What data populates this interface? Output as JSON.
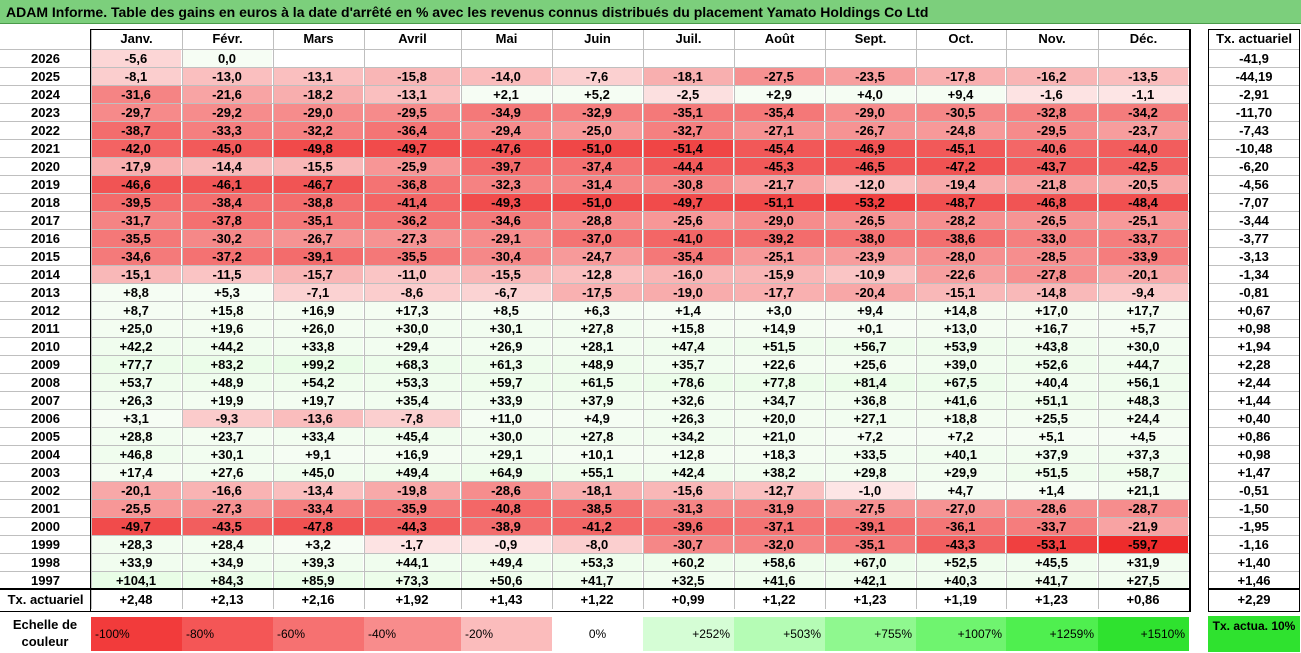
{
  "title": "ADAM Informe. Table des gains en euros à la date d'arrêté en % avec les revenus connus distribués du placement Yamato Holdings Co Ltd",
  "chart_data": {
    "type": "heatmap",
    "months": [
      "Janv.",
      "Févr.",
      "Mars",
      "Avril",
      "Mai",
      "Juin",
      "Juil.",
      "Août",
      "Sept.",
      "Oct.",
      "Nov.",
      "Déc."
    ],
    "rate_header": "Tx. actuariel",
    "rows": [
      {
        "year": "2026",
        "values": [
          "-5,6",
          "0,0",
          "",
          "",
          "",
          "",
          "",
          "",
          "",
          "",
          "",
          ""
        ],
        "rate": "-41,9"
      },
      {
        "year": "2025",
        "values": [
          "-8,1",
          "-13,0",
          "-13,1",
          "-15,8",
          "-14,0",
          "-7,6",
          "-18,1",
          "-27,5",
          "-23,5",
          "-17,8",
          "-16,2",
          "-13,5"
        ],
        "rate": "-44,19"
      },
      {
        "year": "2024",
        "values": [
          "-31,6",
          "-21,6",
          "-18,2",
          "-13,1",
          "+2,1",
          "+5,2",
          "-2,5",
          "+2,9",
          "+4,0",
          "+9,4",
          "-1,6",
          "-1,1"
        ],
        "rate": "-2,91"
      },
      {
        "year": "2023",
        "values": [
          "-29,7",
          "-29,2",
          "-29,0",
          "-29,5",
          "-34,9",
          "-32,9",
          "-35,1",
          "-35,4",
          "-29,0",
          "-30,5",
          "-32,8",
          "-34,2"
        ],
        "rate": "-11,70"
      },
      {
        "year": "2022",
        "values": [
          "-38,7",
          "-33,3",
          "-32,2",
          "-36,4",
          "-29,4",
          "-25,0",
          "-32,7",
          "-27,1",
          "-26,7",
          "-24,8",
          "-29,5",
          "-23,7"
        ],
        "rate": "-7,43"
      },
      {
        "year": "2021",
        "values": [
          "-42,0",
          "-45,0",
          "-49,8",
          "-49,7",
          "-47,6",
          "-51,0",
          "-51,4",
          "-45,4",
          "-46,9",
          "-45,1",
          "-40,6",
          "-44,0"
        ],
        "rate": "-10,48"
      },
      {
        "year": "2020",
        "values": [
          "-17,9",
          "-14,4",
          "-15,5",
          "-25,9",
          "-39,7",
          "-37,4",
          "-44,4",
          "-45,3",
          "-46,5",
          "-47,2",
          "-43,7",
          "-42,5"
        ],
        "rate": "-6,20"
      },
      {
        "year": "2019",
        "values": [
          "-46,6",
          "-46,1",
          "-46,7",
          "-36,8",
          "-32,3",
          "-31,4",
          "-30,8",
          "-21,7",
          "-12,0",
          "-19,4",
          "-21,8",
          "-20,5"
        ],
        "rate": "-4,56"
      },
      {
        "year": "2018",
        "values": [
          "-39,5",
          "-38,4",
          "-38,8",
          "-41,4",
          "-49,3",
          "-51,0",
          "-49,7",
          "-51,1",
          "-53,2",
          "-48,7",
          "-46,8",
          "-48,4"
        ],
        "rate": "-7,07"
      },
      {
        "year": "2017",
        "values": [
          "-31,7",
          "-37,8",
          "-35,1",
          "-36,2",
          "-34,6",
          "-28,8",
          "-25,6",
          "-29,0",
          "-26,5",
          "-28,2",
          "-26,5",
          "-25,1"
        ],
        "rate": "-3,44"
      },
      {
        "year": "2016",
        "values": [
          "-35,5",
          "-30,2",
          "-26,7",
          "-27,3",
          "-29,1",
          "-37,0",
          "-41,0",
          "-39,2",
          "-38,0",
          "-38,6",
          "-33,0",
          "-33,7"
        ],
        "rate": "-3,77"
      },
      {
        "year": "2015",
        "values": [
          "-34,6",
          "-37,2",
          "-39,1",
          "-35,5",
          "-30,4",
          "-24,7",
          "-35,4",
          "-25,1",
          "-23,9",
          "-28,0",
          "-28,5",
          "-33,9"
        ],
        "rate": "-3,13"
      },
      {
        "year": "2014",
        "values": [
          "-15,1",
          "-11,5",
          "-15,7",
          "-11,0",
          "-15,5",
          "-12,8",
          "-16,0",
          "-15,9",
          "-10,9",
          "-22,6",
          "-27,8",
          "-20,1"
        ],
        "rate": "-1,34"
      },
      {
        "year": "2013",
        "values": [
          "+8,8",
          "+5,3",
          "-7,1",
          "-8,6",
          "-6,7",
          "-17,5",
          "-19,0",
          "-17,7",
          "-20,4",
          "-15,1",
          "-14,8",
          "-9,4"
        ],
        "rate": "-0,81"
      },
      {
        "year": "2012",
        "values": [
          "+8,7",
          "+15,8",
          "+16,9",
          "+17,3",
          "+8,5",
          "+6,3",
          "+1,4",
          "+3,0",
          "+9,4",
          "+14,8",
          "+17,0",
          "+17,7"
        ],
        "rate": "+0,67"
      },
      {
        "year": "2011",
        "values": [
          "+25,0",
          "+19,6",
          "+26,0",
          "+30,0",
          "+30,1",
          "+27,8",
          "+15,8",
          "+14,9",
          "+0,1",
          "+13,0",
          "+16,7",
          "+5,7"
        ],
        "rate": "+0,98"
      },
      {
        "year": "2010",
        "values": [
          "+42,2",
          "+44,2",
          "+33,8",
          "+29,4",
          "+26,9",
          "+28,1",
          "+47,4",
          "+51,5",
          "+56,7",
          "+53,9",
          "+43,8",
          "+30,0"
        ],
        "rate": "+1,94"
      },
      {
        "year": "2009",
        "values": [
          "+77,7",
          "+83,2",
          "+99,2",
          "+68,3",
          "+61,3",
          "+48,9",
          "+35,7",
          "+22,6",
          "+25,6",
          "+39,0",
          "+52,6",
          "+44,7"
        ],
        "rate": "+2,28"
      },
      {
        "year": "2008",
        "values": [
          "+53,7",
          "+48,9",
          "+54,2",
          "+53,3",
          "+59,7",
          "+61,5",
          "+78,6",
          "+77,8",
          "+81,4",
          "+67,5",
          "+40,4",
          "+56,1"
        ],
        "rate": "+2,44"
      },
      {
        "year": "2007",
        "values": [
          "+26,3",
          "+19,9",
          "+19,7",
          "+35,4",
          "+33,9",
          "+37,9",
          "+32,6",
          "+34,7",
          "+36,8",
          "+41,6",
          "+51,1",
          "+48,3"
        ],
        "rate": "+1,44"
      },
      {
        "year": "2006",
        "values": [
          "+3,1",
          "-9,3",
          "-13,6",
          "-7,8",
          "+11,0",
          "+4,9",
          "+26,3",
          "+20,0",
          "+27,1",
          "+18,8",
          "+25,5",
          "+24,4"
        ],
        "rate": "+0,40"
      },
      {
        "year": "2005",
        "values": [
          "+28,8",
          "+23,7",
          "+33,4",
          "+45,4",
          "+30,0",
          "+27,8",
          "+34,2",
          "+21,0",
          "+7,2",
          "+7,2",
          "+5,1",
          "+4,5"
        ],
        "rate": "+0,86"
      },
      {
        "year": "2004",
        "values": [
          "+46,8",
          "+30,1",
          "+9,1",
          "+16,9",
          "+29,1",
          "+10,1",
          "+12,8",
          "+18,3",
          "+33,5",
          "+40,1",
          "+37,9",
          "+37,3"
        ],
        "rate": "+0,98"
      },
      {
        "year": "2003",
        "values": [
          "+17,4",
          "+27,6",
          "+45,0",
          "+49,4",
          "+64,9",
          "+55,1",
          "+42,4",
          "+38,2",
          "+29,8",
          "+29,9",
          "+51,5",
          "+58,7"
        ],
        "rate": "+1,47"
      },
      {
        "year": "2002",
        "values": [
          "-20,1",
          "-16,6",
          "-13,4",
          "-19,8",
          "-28,6",
          "-18,1",
          "-15,6",
          "-12,7",
          "-1,0",
          "+4,7",
          "+1,4",
          "+21,1"
        ],
        "rate": "-0,51"
      },
      {
        "year": "2001",
        "values": [
          "-25,5",
          "-27,3",
          "-33,4",
          "-35,9",
          "-40,8",
          "-38,5",
          "-31,3",
          "-31,9",
          "-27,5",
          "-27,0",
          "-28,6",
          "-28,7"
        ],
        "rate": "-1,50"
      },
      {
        "year": "2000",
        "values": [
          "-49,7",
          "-43,5",
          "-47,8",
          "-44,3",
          "-38,9",
          "-41,2",
          "-39,6",
          "-37,1",
          "-39,1",
          "-36,1",
          "-33,7",
          "-21,9"
        ],
        "rate": "-1,95"
      },
      {
        "year": "1999",
        "values": [
          "+28,3",
          "+28,4",
          "+3,2",
          "-1,7",
          "-0,9",
          "-8,0",
          "-30,7",
          "-32,0",
          "-35,1",
          "-43,3",
          "-53,1",
          "-59,7"
        ],
        "rate": "-1,16"
      },
      {
        "year": "1998",
        "values": [
          "+33,9",
          "+34,9",
          "+39,3",
          "+44,1",
          "+49,4",
          "+53,3",
          "+60,2",
          "+58,6",
          "+67,0",
          "+52,5",
          "+45,5",
          "+31,9"
        ],
        "rate": "+1,40"
      },
      {
        "year": "1997",
        "values": [
          "+104,1",
          "+84,3",
          "+85,9",
          "+73,3",
          "+50,6",
          "+41,7",
          "+32,5",
          "+41,6",
          "+42,1",
          "+40,3",
          "+41,7",
          "+27,5"
        ],
        "rate": "+1,46"
      }
    ],
    "footer": {
      "label": "Tx. actuariel",
      "values": [
        "+2,48",
        "+2,13",
        "+2,16",
        "+1,92",
        "+1,43",
        "+1,22",
        "+0,99",
        "+1,22",
        "+1,23",
        "+1,19",
        "+1,23",
        "+0,86"
      ],
      "rate": "+2,29"
    },
    "scale": {
      "label": "Echelle de couleur",
      "items": [
        {
          "text": "-100%",
          "color": "#f23b3b",
          "align": "left"
        },
        {
          "text": "-80%",
          "color": "#f45656",
          "align": "left"
        },
        {
          "text": "-60%",
          "color": "#f67171",
          "align": "left"
        },
        {
          "text": "-40%",
          "color": "#f88c8c",
          "align": "left"
        },
        {
          "text": "-20%",
          "color": "#fbbcbc",
          "align": "left"
        },
        {
          "text": "0%",
          "color": "#ffffff",
          "align": "center"
        },
        {
          "text": "+252%",
          "color": "#d5fdd5",
          "align": "right"
        },
        {
          "text": "+503%",
          "color": "#b5fcb5",
          "align": "right"
        },
        {
          "text": "+755%",
          "color": "#8ff88f",
          "align": "right"
        },
        {
          "text": "+1007%",
          "color": "#6ff46f",
          "align": "right"
        },
        {
          "text": "+1259%",
          "color": "#4fef4f",
          "align": "right"
        },
        {
          "text": "+1510%",
          "color": "#2fe22f",
          "align": "right"
        }
      ],
      "tx_label": "Tx. actua. 10%"
    },
    "colors": {
      "title_bg": "#7ccf7c",
      "neg_strong": "#ee2a2a",
      "neg_light": "#fde4e4",
      "pos_light": "#f4fdf2"
    }
  }
}
